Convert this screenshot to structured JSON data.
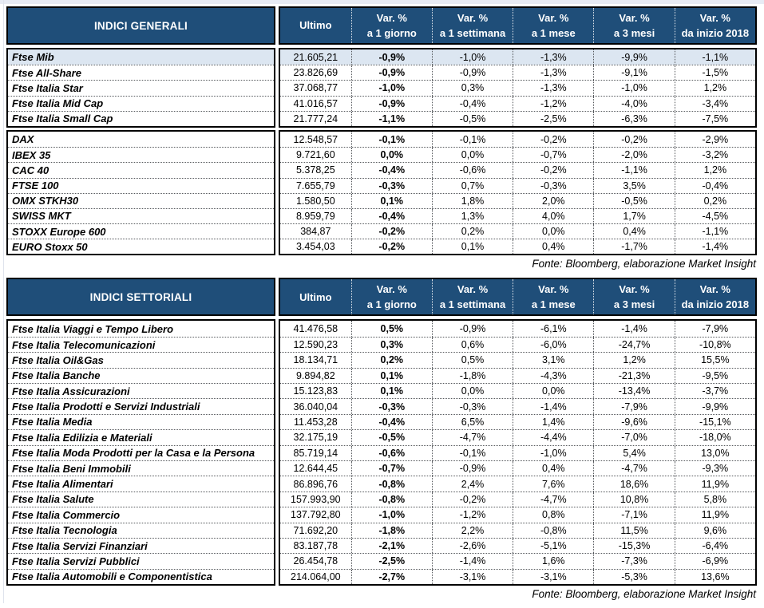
{
  "colors": {
    "header_bg": "#1f4e79",
    "header_text": "#ffffff",
    "highlight_row_bg": "#dce6f1",
    "border": "#000000"
  },
  "columns": {
    "ultimo": "Ultimo",
    "var_label": "Var. %",
    "sub_labels": [
      "a 1 giorno",
      "a 1 settimana",
      "a 1 mese",
      "a 3 mesi",
      "da inizio 2018"
    ]
  },
  "source_note": "Fonte: Bloomberg, elaborazione Market Insight",
  "tables": [
    {
      "title": "INDICI GENERALI",
      "blocks": [
        {
          "rows": [
            {
              "label": "Ftse Mib",
              "ultimo": "21.605,21",
              "var": [
                "-0,9%",
                "-1,0%",
                "-1,3%",
                "-9,9%",
                "-1,1%"
              ],
              "highlight": true
            },
            {
              "label": "Ftse All-Share",
              "ultimo": "23.826,69",
              "var": [
                "-0,9%",
                "-0,9%",
                "-1,3%",
                "-9,1%",
                "-1,5%"
              ]
            },
            {
              "label": "Ftse Italia Star",
              "ultimo": "37.068,77",
              "var": [
                "-1,0%",
                "0,3%",
                "-1,3%",
                "-1,0%",
                "1,2%"
              ]
            },
            {
              "label": "Ftse Italia Mid Cap",
              "ultimo": "41.016,57",
              "var": [
                "-0,9%",
                "-0,4%",
                "-1,2%",
                "-4,0%",
                "-3,4%"
              ]
            },
            {
              "label": "Ftse Italia Small Cap",
              "ultimo": "21.777,24",
              "var": [
                "-1,1%",
                "-0,5%",
                "-2,5%",
                "-6,3%",
                "-7,5%"
              ]
            }
          ]
        },
        {
          "rows": [
            {
              "label": "DAX",
              "ultimo": "12.548,57",
              "var": [
                "-0,1%",
                "-0,1%",
                "-0,2%",
                "-0,2%",
                "-2,9%"
              ]
            },
            {
              "label": "IBEX 35",
              "ultimo": "9.721,60",
              "var": [
                "0,0%",
                "0,0%",
                "-0,7%",
                "-2,0%",
                "-3,2%"
              ]
            },
            {
              "label": "CAC 40",
              "ultimo": "5.378,25",
              "var": [
                "-0,4%",
                "-0,6%",
                "-0,2%",
                "-1,1%",
                "1,2%"
              ]
            },
            {
              "label": "FTSE 100",
              "ultimo": "7.655,79",
              "var": [
                "-0,3%",
                "0,7%",
                "-0,3%",
                "3,5%",
                "-0,4%"
              ]
            },
            {
              "label": "OMX STKH30",
              "ultimo": "1.580,50",
              "var": [
                "0,1%",
                "1,8%",
                "2,0%",
                "-0,5%",
                "0,2%"
              ]
            },
            {
              "label": "SWISS MKT",
              "ultimo": "8.959,79",
              "var": [
                "-0,4%",
                "1,3%",
                "4,0%",
                "1,7%",
                "-4,5%"
              ]
            },
            {
              "label": "STOXX Europe 600",
              "ultimo": "384,87",
              "var": [
                "-0,2%",
                "0,2%",
                "0,0%",
                "0,4%",
                "-1,1%"
              ]
            },
            {
              "label": "EURO Stoxx 50",
              "ultimo": "3.454,03",
              "var": [
                "-0,2%",
                "0,1%",
                "0,4%",
                "-1,7%",
                "-1,4%"
              ]
            }
          ]
        }
      ]
    },
    {
      "title": "INDICI SETTORIALI",
      "blocks": [
        {
          "rows": [
            {
              "label": "Ftse Italia Viaggi e Tempo Libero",
              "ultimo": "41.476,58",
              "var": [
                "0,5%",
                "-0,9%",
                "-6,1%",
                "-1,4%",
                "-7,9%"
              ]
            },
            {
              "label": "Ftse Italia Telecomunicazioni",
              "ultimo": "12.590,23",
              "var": [
                "0,3%",
                "0,6%",
                "-6,0%",
                "-24,7%",
                "-10,8%"
              ]
            },
            {
              "label": "Ftse Italia Oil&Gas",
              "ultimo": "18.134,71",
              "var": [
                "0,2%",
                "0,5%",
                "3,1%",
                "1,2%",
                "15,5%"
              ]
            },
            {
              "label": "Ftse Italia Banche",
              "ultimo": "9.894,82",
              "var": [
                "0,1%",
                "-1,8%",
                "-4,3%",
                "-21,3%",
                "-9,5%"
              ]
            },
            {
              "label": "Ftse Italia Assicurazioni",
              "ultimo": "15.123,83",
              "var": [
                "0,1%",
                "0,0%",
                "0,0%",
                "-13,4%",
                "-3,7%"
              ]
            },
            {
              "label": "Ftse Italia Prodotti e Servizi Industriali",
              "ultimo": "36.040,04",
              "var": [
                "-0,3%",
                "-0,3%",
                "-1,4%",
                "-7,9%",
                "-9,9%"
              ]
            },
            {
              "label": "Ftse Italia Media",
              "ultimo": "11.453,28",
              "var": [
                "-0,4%",
                "6,5%",
                "1,4%",
                "-9,6%",
                "-15,1%"
              ]
            },
            {
              "label": "Ftse Italia Edilizia e Materiali",
              "ultimo": "32.175,19",
              "var": [
                "-0,5%",
                "-4,7%",
                "-4,4%",
                "-7,0%",
                "-18,0%"
              ]
            },
            {
              "label": "Ftse Italia Moda Prodotti per la Casa e la Persona",
              "ultimo": "85.719,14",
              "var": [
                "-0,6%",
                "-0,1%",
                "-1,0%",
                "5,4%",
                "13,0%"
              ]
            },
            {
              "label": "Ftse Italia Beni Immobili",
              "ultimo": "12.644,45",
              "var": [
                "-0,7%",
                "-0,9%",
                "0,4%",
                "-4,7%",
                "-9,3%"
              ]
            },
            {
              "label": "Ftse Italia Alimentari",
              "ultimo": "86.896,76",
              "var": [
                "-0,8%",
                "2,4%",
                "7,6%",
                "18,6%",
                "11,9%"
              ]
            },
            {
              "label": "Ftse Italia Salute",
              "ultimo": "157.993,90",
              "var": [
                "-0,8%",
                "-0,2%",
                "-4,7%",
                "10,8%",
                "5,8%"
              ]
            },
            {
              "label": "Ftse Italia Commercio",
              "ultimo": "137.792,80",
              "var": [
                "-1,0%",
                "-1,2%",
                "0,8%",
                "-7,1%",
                "11,9%"
              ]
            },
            {
              "label": "Ftse Italia Tecnologia",
              "ultimo": "71.692,20",
              "var": [
                "-1,8%",
                "2,2%",
                "-0,8%",
                "11,5%",
                "9,6%"
              ]
            },
            {
              "label": "Ftse Italia Servizi Finanziari",
              "ultimo": "83.187,78",
              "var": [
                "-2,1%",
                "-2,6%",
                "-5,1%",
                "-15,3%",
                "-6,4%"
              ]
            },
            {
              "label": "Ftse Italia Servizi Pubblici",
              "ultimo": "26.454,78",
              "var": [
                "-2,5%",
                "-1,4%",
                "1,6%",
                "-7,3%",
                "-6,9%"
              ]
            },
            {
              "label": "Ftse Italia Automobili e Componentistica",
              "ultimo": "214.064,00",
              "var": [
                "-2,7%",
                "-3,1%",
                "-3,1%",
                "-5,3%",
                "13,6%"
              ]
            }
          ]
        }
      ]
    }
  ]
}
